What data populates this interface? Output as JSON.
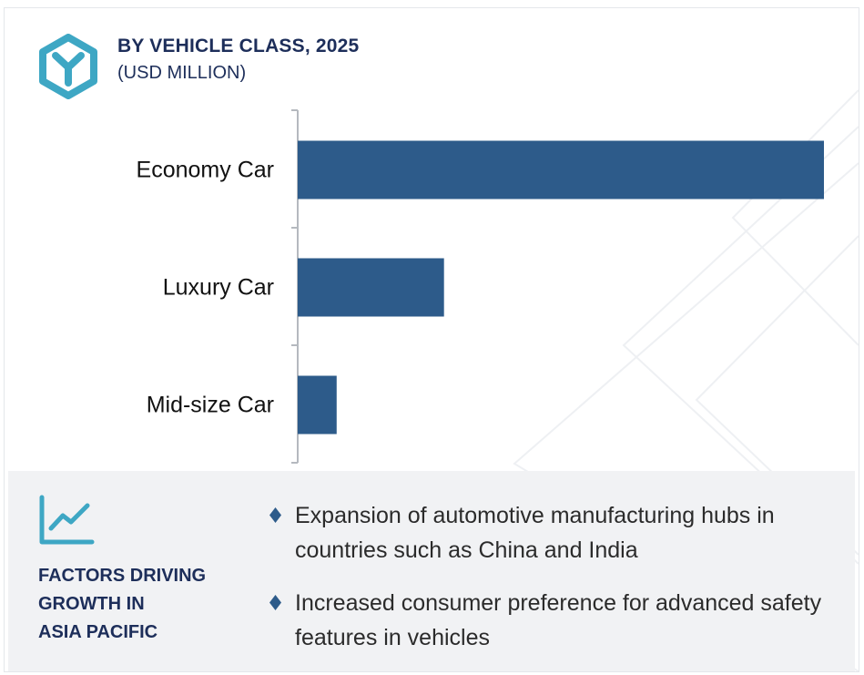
{
  "header": {
    "title": "BY VEHICLE CLASS, 2025",
    "subtitle": "(USD MILLION)",
    "logo_icon": "hexagon-y-logo-icon"
  },
  "colors": {
    "bar": "#2d5b8a",
    "title": "#1d2e5a",
    "accent": "#3ea7c4",
    "panel_bg": "#f1f2f4"
  },
  "chart_data": {
    "type": "bar",
    "orientation": "horizontal",
    "title": "BY VEHICLE CLASS, 2025",
    "subtitle": "(USD MILLION)",
    "categories": [
      "Economy Car",
      "Luxury Car",
      "Mid-size Car"
    ],
    "values": [
      100,
      27.8,
      7.4
    ],
    "xlim": [
      0,
      100
    ],
    "grid": false,
    "value_labels": false
  },
  "factors": {
    "icon": "growth-chart-icon",
    "title_lines": [
      "FACTORS DRIVING",
      "GROWTH IN",
      "ASIA PACIFIC"
    ],
    "bullets": [
      "Expansion of automotive manufacturing hubs in countries such as China and India",
      "Increased consumer preference for advanced safety features in vehicles"
    ]
  }
}
